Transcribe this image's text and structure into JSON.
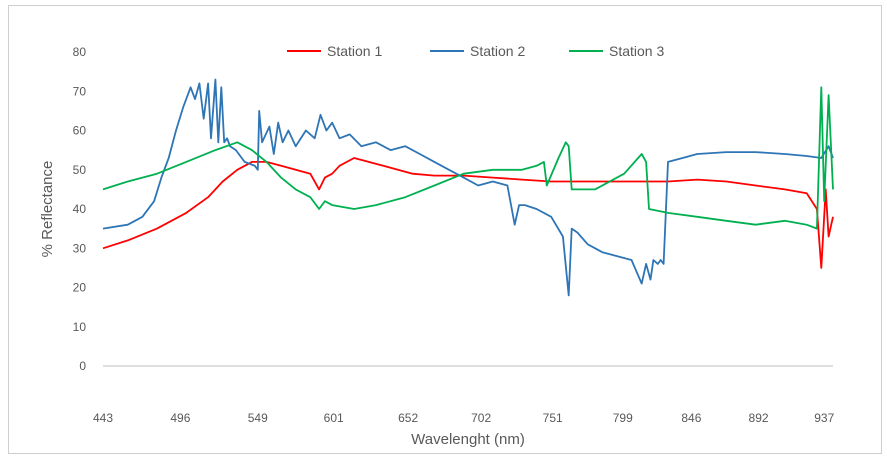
{
  "chart_data": {
    "type": "line",
    "title": "",
    "xlabel": "Wavelenght (nm)",
    "ylabel": "% Reflectance",
    "xlim": [
      443,
      943
    ],
    "ylim": [
      0,
      80
    ],
    "yticks": [
      0,
      10,
      20,
      30,
      40,
      50,
      60,
      70,
      80
    ],
    "xtick_labels": [
      "443",
      "496",
      "549",
      "601",
      "652",
      "702",
      "751",
      "799",
      "846",
      "892",
      "937"
    ],
    "xtick_values": [
      443,
      496,
      549,
      601,
      652,
      702,
      751,
      799,
      846,
      892,
      937
    ],
    "grid": false,
    "legend_position": "top",
    "series": [
      {
        "name": "Station 1",
        "color": "#ff0000",
        "x": [
          443,
          460,
          480,
          500,
          515,
          525,
          535,
          545,
          555,
          565,
          575,
          585,
          591,
          595,
          600,
          605,
          615,
          625,
          635,
          645,
          655,
          670,
          690,
          710,
          730,
          750,
          770,
          790,
          810,
          830,
          850,
          870,
          890,
          910,
          925,
          932,
          935,
          938,
          940,
          943
        ],
        "y": [
          30,
          32,
          35,
          39,
          43,
          47,
          50,
          52,
          52,
          51,
          50,
          49,
          45,
          48,
          49,
          51,
          53,
          52,
          51,
          50,
          49,
          48.5,
          48.5,
          48,
          47.5,
          47,
          47,
          47,
          47,
          47,
          47.5,
          47,
          46,
          45,
          44,
          40,
          25,
          45,
          33,
          38
        ]
      },
      {
        "name": "Station 2",
        "color": "#2e75b6",
        "x": [
          443,
          460,
          470,
          478,
          483,
          488,
          493,
          498,
          503,
          506,
          509,
          512,
          515,
          517,
          520,
          522,
          524,
          526,
          528,
          530,
          534,
          540,
          547,
          549,
          550,
          552,
          557,
          560,
          563,
          566,
          570,
          575,
          582,
          588,
          592,
          596,
          600,
          605,
          612,
          620,
          630,
          640,
          650,
          660,
          670,
          680,
          690,
          700,
          710,
          720,
          725,
          728,
          732,
          740,
          750,
          758,
          762,
          764,
          768,
          775,
          785,
          795,
          805,
          812,
          815,
          818,
          820,
          823,
          825,
          827,
          830,
          840,
          850,
          870,
          890,
          910,
          925,
          935,
          940,
          943
        ],
        "y": [
          35,
          36,
          38,
          42,
          48,
          53,
          60,
          66,
          71,
          68,
          72,
          63,
          72,
          58,
          73,
          57,
          71,
          57,
          58,
          56,
          55,
          52,
          51,
          50,
          65,
          57,
          61,
          54,
          62,
          57,
          60,
          56,
          60,
          58,
          64,
          60,
          62,
          58,
          59,
          56,
          57,
          55,
          56,
          54,
          52,
          50,
          48,
          46,
          47,
          46,
          36,
          41,
          41,
          40,
          38,
          33,
          18,
          35,
          34,
          31,
          29,
          28,
          27,
          21,
          26,
          22,
          27,
          26,
          27,
          26,
          52,
          53,
          54,
          54.5,
          54.5,
          54,
          53.5,
          53,
          56,
          53
        ]
      },
      {
        "name": "Station 3",
        "color": "#00b050",
        "x": [
          443,
          460,
          480,
          500,
          520,
          535,
          545,
          555,
          565,
          575,
          585,
          591,
          595,
          600,
          615,
          630,
          650,
          670,
          690,
          710,
          730,
          740,
          745,
          747,
          755,
          760,
          762,
          764,
          780,
          800,
          812,
          815,
          817,
          830,
          850,
          870,
          890,
          910,
          925,
          932,
          935,
          937,
          940,
          943
        ],
        "y": [
          45,
          47,
          49,
          52,
          55,
          57,
          55,
          52,
          48,
          45,
          43,
          40,
          42,
          41,
          40,
          41,
          43,
          46,
          49,
          50,
          50,
          51,
          52,
          46,
          53,
          57,
          56,
          45,
          45,
          49,
          54,
          52,
          40,
          39,
          38,
          37,
          36,
          37,
          36,
          35,
          71,
          42,
          69,
          45
        ]
      }
    ]
  }
}
